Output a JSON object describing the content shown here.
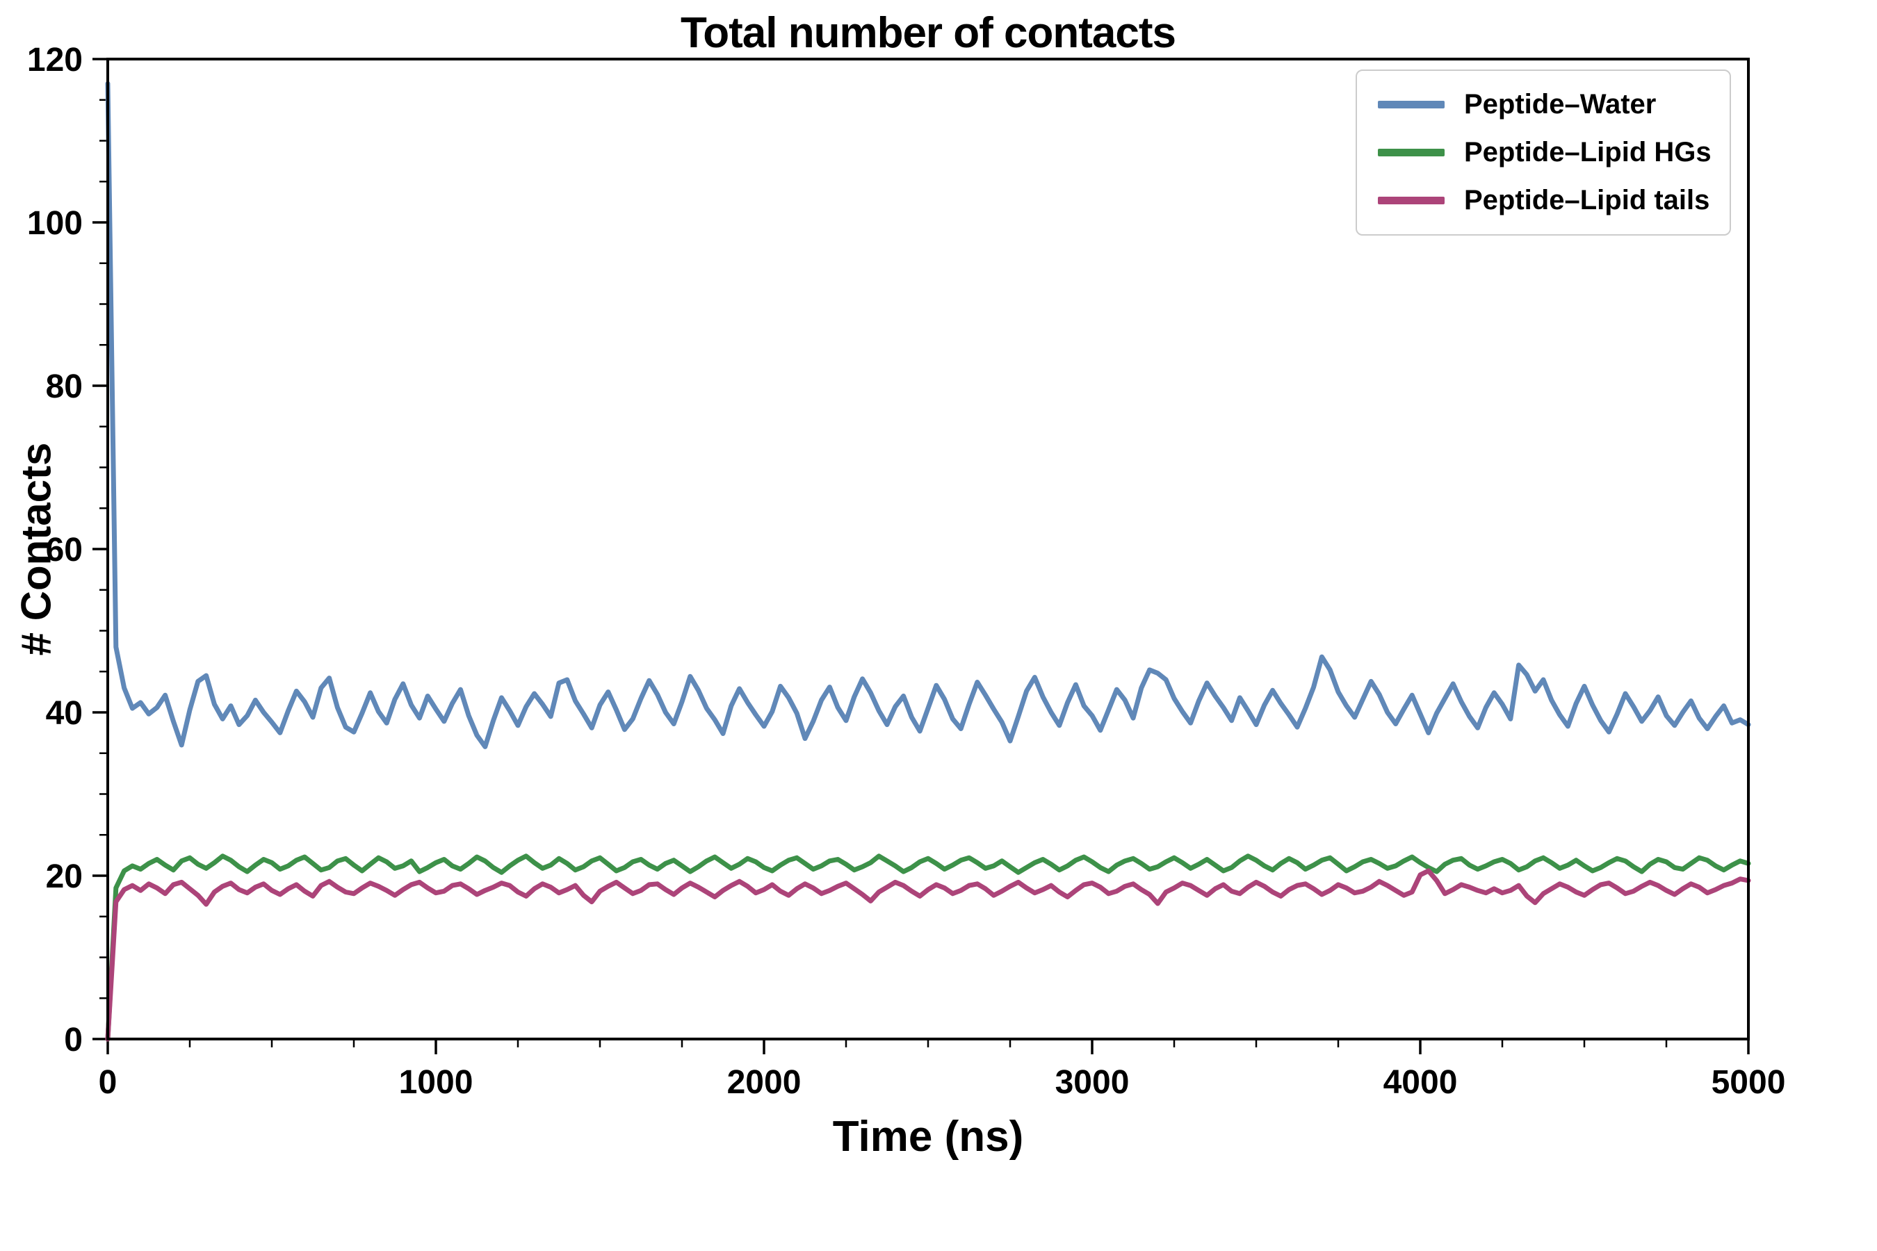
{
  "page": {
    "background": "#ffffff"
  },
  "chart_data": {
    "type": "line",
    "title": "Total number of contacts",
    "xlabel": "Time (ns)",
    "ylabel": "# Contacts",
    "xlim": [
      0,
      5000
    ],
    "ylim": [
      0,
      120
    ],
    "xticks": [
      0,
      1000,
      2000,
      3000,
      4000,
      5000
    ],
    "yticks": [
      0,
      20,
      40,
      60,
      80,
      100,
      120
    ],
    "x_minor_step": 250,
    "y_minor_step": 5,
    "grid": false,
    "legend_position": "upper right",
    "x_start": 0,
    "x_step": 25,
    "series": [
      {
        "name": "Peptide–Water",
        "color": "#6088b8",
        "values": [
          117.0,
          48.0,
          43.0,
          40.5,
          41.2,
          39.8,
          40.6,
          42.1,
          38.9,
          36.0,
          40.3,
          43.8,
          44.5,
          41.0,
          39.2,
          40.8,
          38.5,
          39.6,
          41.5,
          40.0,
          38.8,
          37.5,
          40.2,
          42.6,
          41.3,
          39.4,
          43.0,
          44.2,
          40.6,
          38.2,
          37.6,
          39.9,
          42.4,
          40.1,
          38.7,
          41.6,
          43.5,
          40.9,
          39.3,
          42.0,
          40.4,
          38.9,
          41.1,
          42.8,
          39.6,
          37.2,
          35.8,
          39.0,
          41.8,
          40.2,
          38.4,
          40.7,
          42.3,
          41.0,
          39.5,
          43.6,
          44.0,
          41.4,
          39.8,
          38.1,
          40.9,
          42.5,
          40.3,
          37.9,
          39.2,
          41.7,
          43.9,
          42.2,
          40.0,
          38.6,
          41.3,
          44.4,
          42.7,
          40.5,
          39.1,
          37.4,
          40.8,
          42.9,
          41.2,
          39.7,
          38.3,
          40.1,
          43.2,
          41.8,
          39.9,
          36.8,
          38.9,
          41.5,
          43.1,
          40.6,
          39.0,
          41.9,
          44.1,
          42.4,
          40.2,
          38.5,
          40.7,
          42.0,
          39.4,
          37.7,
          40.5,
          43.3,
          41.6,
          39.2,
          38.0,
          41.0,
          43.7,
          42.1,
          40.4,
          38.8,
          36.5,
          39.5,
          42.6,
          44.3,
          41.9,
          40.0,
          38.4,
          41.2,
          43.4,
          40.8,
          39.6,
          37.8,
          40.3,
          42.8,
          41.5,
          39.3,
          43.0,
          45.2,
          44.8,
          44.0,
          41.7,
          40.1,
          38.7,
          41.4,
          43.6,
          42.0,
          40.6,
          39.0,
          41.8,
          40.2,
          38.5,
          40.9,
          42.7,
          41.1,
          39.7,
          38.2,
          40.5,
          43.1,
          46.8,
          45.2,
          42.5,
          40.8,
          39.4,
          41.6,
          43.8,
          42.2,
          40.0,
          38.6,
          40.4,
          42.1,
          39.8,
          37.5,
          39.9,
          41.7,
          43.5,
          41.3,
          39.5,
          38.1,
          40.6,
          42.4,
          41.0,
          39.2,
          45.8,
          44.6,
          42.6,
          44.0,
          41.5,
          39.7,
          38.3,
          41.1,
          43.2,
          40.9,
          39.0,
          37.6,
          39.8,
          42.3,
          40.7,
          38.9,
          40.2,
          41.9,
          39.6,
          38.4,
          40.0,
          41.4,
          39.3,
          38.0,
          39.5,
          40.8,
          38.7,
          39.1,
          38.5
        ]
      },
      {
        "name": "Peptide–Lipid HGs",
        "color": "#3d9149",
        "values": [
          0.0,
          18.5,
          20.6,
          21.2,
          20.8,
          21.5,
          22.0,
          21.3,
          20.7,
          21.8,
          22.2,
          21.4,
          20.9,
          21.6,
          22.4,
          21.9,
          21.1,
          20.5,
          21.3,
          22.0,
          21.6,
          20.8,
          21.2,
          21.9,
          22.3,
          21.5,
          20.7,
          21.0,
          21.8,
          22.1,
          21.3,
          20.6,
          21.4,
          22.2,
          21.7,
          20.9,
          21.2,
          21.8,
          20.5,
          21.0,
          21.6,
          22.0,
          21.2,
          20.8,
          21.5,
          22.3,
          21.8,
          21.0,
          20.4,
          21.2,
          21.9,
          22.4,
          21.6,
          20.9,
          21.3,
          22.1,
          21.5,
          20.7,
          21.1,
          21.8,
          22.2,
          21.4,
          20.6,
          21.0,
          21.7,
          22.0,
          21.3,
          20.8,
          21.5,
          21.9,
          21.2,
          20.5,
          21.1,
          21.8,
          22.3,
          21.6,
          20.9,
          21.4,
          22.1,
          21.7,
          21.0,
          20.6,
          21.3,
          21.9,
          22.2,
          21.5,
          20.8,
          21.2,
          21.8,
          22.0,
          21.4,
          20.7,
          21.1,
          21.6,
          22.4,
          21.8,
          21.2,
          20.5,
          21.0,
          21.7,
          22.1,
          21.5,
          20.8,
          21.3,
          21.9,
          22.2,
          21.6,
          20.9,
          21.2,
          21.8,
          21.1,
          20.4,
          21.0,
          21.6,
          22.0,
          21.4,
          20.7,
          21.2,
          21.9,
          22.3,
          21.7,
          21.0,
          20.5,
          21.3,
          21.8,
          22.1,
          21.5,
          20.8,
          21.1,
          21.7,
          22.2,
          21.6,
          20.9,
          21.4,
          22.0,
          21.3,
          20.6,
          21.0,
          21.8,
          22.4,
          21.9,
          21.2,
          20.7,
          21.5,
          22.1,
          21.6,
          20.8,
          21.3,
          21.9,
          22.2,
          21.4,
          20.6,
          21.1,
          21.7,
          22.0,
          21.5,
          20.9,
          21.2,
          21.8,
          22.3,
          21.6,
          21.0,
          20.5,
          21.4,
          21.9,
          22.1,
          21.3,
          20.8,
          21.2,
          21.7,
          22.0,
          21.5,
          20.7,
          21.1,
          21.8,
          22.2,
          21.6,
          20.9,
          21.3,
          21.9,
          21.2,
          20.6,
          21.0,
          21.6,
          22.1,
          21.8,
          21.1,
          20.5,
          21.4,
          22.0,
          21.7,
          21.0,
          20.8,
          21.5,
          22.2,
          21.9,
          21.2,
          20.7,
          21.3,
          21.8,
          21.5
        ]
      },
      {
        "name": "Peptide–Lipid tails",
        "color": "#ac4479",
        "values": [
          0.0,
          16.8,
          18.3,
          18.8,
          18.2,
          19.0,
          18.5,
          17.8,
          18.9,
          19.2,
          18.4,
          17.6,
          16.5,
          18.0,
          18.7,
          19.1,
          18.3,
          17.9,
          18.6,
          19.0,
          18.2,
          17.7,
          18.4,
          18.9,
          18.1,
          17.5,
          18.8,
          19.3,
          18.6,
          18.0,
          17.8,
          18.5,
          19.1,
          18.7,
          18.2,
          17.6,
          18.3,
          18.9,
          19.2,
          18.5,
          17.9,
          18.1,
          18.8,
          19.0,
          18.4,
          17.7,
          18.2,
          18.6,
          19.1,
          18.8,
          18.0,
          17.5,
          18.4,
          19.0,
          18.6,
          17.9,
          18.3,
          18.8,
          17.6,
          16.8,
          18.1,
          18.7,
          19.2,
          18.5,
          17.8,
          18.2,
          18.9,
          19.0,
          18.3,
          17.7,
          18.5,
          19.1,
          18.6,
          18.0,
          17.4,
          18.2,
          18.8,
          19.3,
          18.7,
          17.9,
          18.3,
          18.9,
          18.1,
          17.6,
          18.4,
          19.0,
          18.5,
          17.8,
          18.2,
          18.7,
          19.1,
          18.4,
          17.7,
          16.9,
          18.0,
          18.6,
          19.2,
          18.8,
          18.1,
          17.5,
          18.3,
          18.9,
          18.5,
          17.8,
          18.2,
          18.8,
          19.0,
          18.4,
          17.6,
          18.1,
          18.7,
          19.2,
          18.5,
          17.9,
          18.3,
          18.8,
          18.0,
          17.4,
          18.2,
          18.9,
          19.1,
          18.6,
          17.8,
          18.1,
          18.7,
          19.0,
          18.3,
          17.7,
          16.6,
          18.0,
          18.5,
          19.1,
          18.8,
          18.2,
          17.6,
          18.4,
          18.9,
          18.1,
          17.8,
          18.6,
          19.2,
          18.7,
          18.0,
          17.5,
          18.3,
          18.8,
          19.0,
          18.4,
          17.7,
          18.2,
          18.9,
          18.5,
          17.9,
          18.1,
          18.6,
          19.3,
          18.8,
          18.2,
          17.6,
          18.0,
          20.1,
          20.6,
          19.4,
          17.8,
          18.3,
          18.9,
          18.6,
          18.2,
          17.9,
          18.4,
          17.9,
          18.2,
          18.8,
          17.5,
          16.7,
          17.8,
          18.4,
          19.0,
          18.6,
          18.0,
          17.6,
          18.3,
          18.9,
          19.1,
          18.5,
          17.8,
          18.1,
          18.7,
          19.2,
          18.8,
          18.2,
          17.7,
          18.4,
          19.0,
          18.6,
          17.9,
          18.3,
          18.8,
          19.1,
          19.6,
          19.4
        ]
      }
    ]
  }
}
